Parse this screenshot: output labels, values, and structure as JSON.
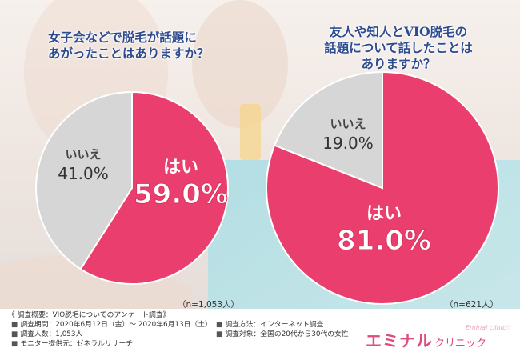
{
  "chart_data": [
    {
      "type": "pie",
      "title": "女子会などで脱毛が話題に\nあがったことはありますか？",
      "categories": [
        "はい",
        "いいえ"
      ],
      "values": [
        59.0,
        41.0
      ],
      "value_labels": [
        "59.0%",
        "41.0%"
      ],
      "n_label": "（n=1,053人）",
      "colors": [
        "#ea3f6e",
        "#d6d6d6"
      ]
    },
    {
      "type": "pie",
      "title": "友人や知人とVIO脱毛の\n話題について話したことは\nありますか？",
      "categories": [
        "はい",
        "いいえ"
      ],
      "values": [
        81.0,
        19.0
      ],
      "value_labels": [
        "81.0%",
        "19.0%"
      ],
      "n_label": "（n=621人）",
      "colors": [
        "#ea3f6e",
        "#d6d6d6"
      ]
    }
  ],
  "survey": {
    "title": "《 調査概要：VIO脱毛についてのアンケート調査》",
    "period": "調査期間：2020年6月12日（金）〜 2020年6月13日（土）",
    "respondents": "調査人数：1,053人",
    "provider": "モニター提供元：ゼネラルリサーチ",
    "method": "調査方法：インターネット調査",
    "target": "調査対象：全国の20代から30代の女性",
    "bullet": "■"
  },
  "brand": {
    "name_en": "Eminal clinic♡",
    "name_jp_big": "エミナル",
    "name_jp_small": "クリニック"
  },
  "colors": {
    "yes": "#ea3f6e",
    "no": "#d6d6d6",
    "title_text": "#2e4b90",
    "brand": "#e04a7c"
  }
}
